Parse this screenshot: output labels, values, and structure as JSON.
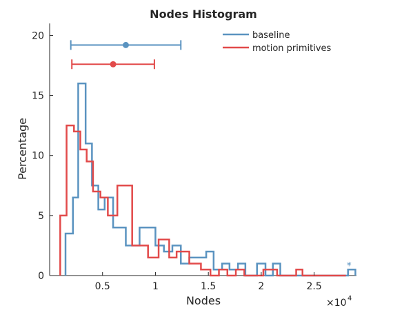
{
  "chart_data": {
    "type": "histogram",
    "title": "Nodes Histogram",
    "xlabel": "Nodes",
    "ylabel": "Percentage",
    "x_exponent_label": "×10",
    "x_exponent_power": "4",
    "xlim": [
      0,
      29000
    ],
    "ylim": [
      0,
      21
    ],
    "xticks": [
      5000,
      10000,
      15000,
      20000,
      25000
    ],
    "xtick_labels": [
      "0.5",
      "1",
      "1.5",
      "2",
      "2.5"
    ],
    "yticks": [
      0,
      5,
      10,
      15,
      20
    ],
    "ytick_labels": [
      "0",
      "5",
      "10",
      "15",
      "20"
    ],
    "legend_position": "top-right",
    "series": [
      {
        "name": "baseline",
        "color": "#5a93c0",
        "bins": [
          [
            1500,
            2200,
            3.5
          ],
          [
            2200,
            2700,
            6.5
          ],
          [
            2700,
            3400,
            16
          ],
          [
            3400,
            4000,
            11
          ],
          [
            4000,
            4600,
            7.5
          ],
          [
            4600,
            5200,
            5.5
          ],
          [
            5200,
            6000,
            6.5
          ],
          [
            6000,
            7200,
            4
          ],
          [
            7200,
            8500,
            2.5
          ],
          [
            8500,
            10000,
            4
          ],
          [
            10000,
            10800,
            2.5
          ],
          [
            10800,
            11600,
            2
          ],
          [
            11600,
            12400,
            2.5
          ],
          [
            12400,
            13200,
            1
          ],
          [
            13200,
            14800,
            1.5
          ],
          [
            14800,
            15500,
            2
          ],
          [
            15500,
            16300,
            0.5
          ],
          [
            16300,
            17000,
            1
          ],
          [
            17000,
            17800,
            0.5
          ],
          [
            17800,
            18500,
            1
          ],
          [
            18500,
            19600,
            0
          ],
          [
            19600,
            20400,
            1
          ],
          [
            20400,
            21100,
            0
          ],
          [
            21100,
            21800,
            1
          ],
          [
            21800,
            28200,
            0
          ],
          [
            28200,
            28900,
            0.5
          ]
        ],
        "mean": 7200,
        "err_low": 2000,
        "err_high": 12400,
        "err_y": 19.2
      },
      {
        "name": "motion primitives",
        "color": "#e24a4a",
        "bins": [
          [
            1000,
            1600,
            5
          ],
          [
            1600,
            2300,
            12.5
          ],
          [
            2300,
            2900,
            12
          ],
          [
            2900,
            3500,
            10.5
          ],
          [
            3500,
            4100,
            9.5
          ],
          [
            4100,
            4800,
            7
          ],
          [
            4800,
            5500,
            6.5
          ],
          [
            5500,
            6400,
            5
          ],
          [
            6400,
            7800,
            7.5
          ],
          [
            7800,
            9300,
            2.5
          ],
          [
            9300,
            10300,
            1.5
          ],
          [
            10300,
            11300,
            3
          ],
          [
            11300,
            12000,
            1.5
          ],
          [
            12000,
            13200,
            2
          ],
          [
            13200,
            14300,
            1
          ],
          [
            14300,
            15200,
            0.5
          ],
          [
            15200,
            16000,
            0
          ],
          [
            16000,
            16800,
            0.5
          ],
          [
            16800,
            17600,
            0
          ],
          [
            17600,
            18400,
            0.5
          ],
          [
            18400,
            20200,
            0
          ],
          [
            20200,
            21500,
            0.5
          ],
          [
            21500,
            23300,
            0
          ],
          [
            23300,
            23900,
            0.5
          ],
          [
            23900,
            28000,
            0
          ]
        ],
        "mean": 6000,
        "err_low": 2100,
        "err_high": 9900,
        "err_y": 17.6
      }
    ],
    "outlier": {
      "x": 28300,
      "y": 0.9,
      "symbol": "*",
      "series": "baseline"
    }
  }
}
